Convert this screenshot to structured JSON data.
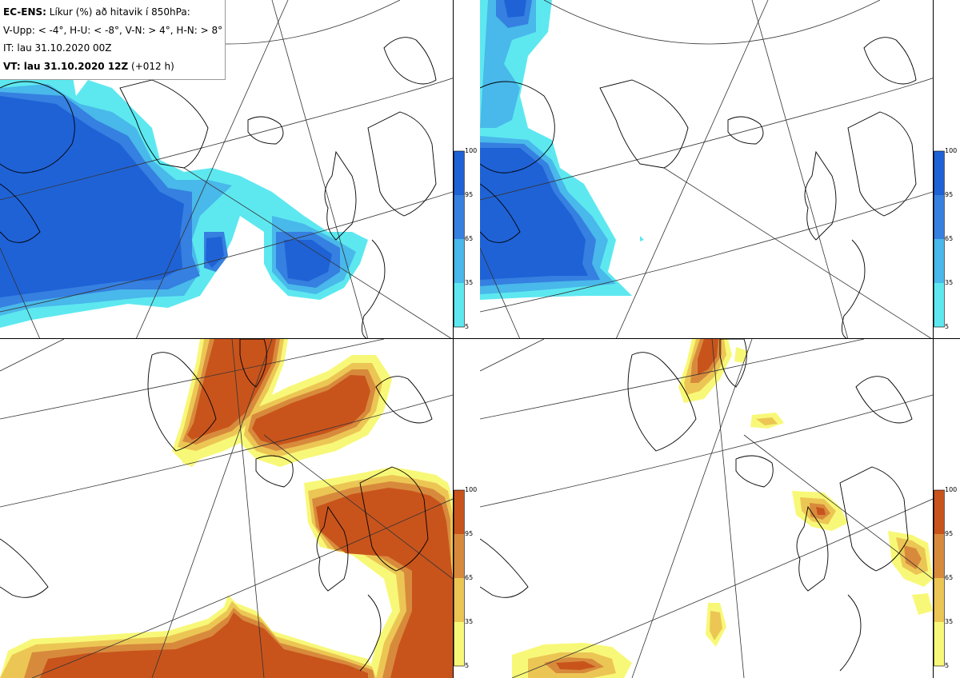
{
  "header": {
    "line1_bold": "EC-ENS:",
    "line1_rest": " Líkur (%) að hitavik í 850hPa:",
    "line2": "V-Upp: < -4°, H-U: < -8°, V-N: > 4°, H-N: > 8°",
    "line3": "IT: lau 31.10.2020 00Z",
    "line4_bold": "VT: lau 31.10.2020 12Z",
    "line4_rest": " (+012 h)"
  },
  "colorbars": {
    "ticks": [
      "100",
      "95",
      "65",
      "35",
      "5"
    ],
    "cold_colors": [
      "#1f62d6",
      "#3580e0",
      "#49b8ea",
      "#5de8f0"
    ],
    "warm_colors": [
      "#c8541c",
      "#d88a3c",
      "#ecc654",
      "#f8f878"
    ]
  },
  "panels": [
    {
      "id": "top-left",
      "variable": "cold anomaly < -4°"
    },
    {
      "id": "top-right",
      "variable": "cold anomaly < -8°"
    },
    {
      "id": "bottom-left",
      "variable": "warm anomaly > 4°"
    },
    {
      "id": "bottom-right",
      "variable": "warm anomaly > 8°"
    }
  ]
}
